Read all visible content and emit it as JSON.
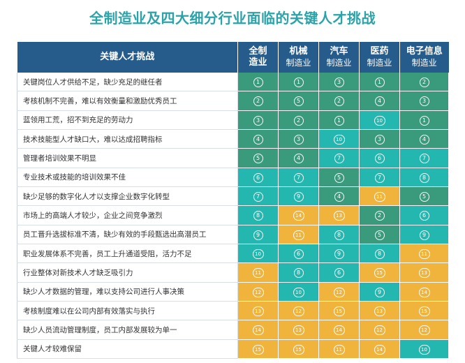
{
  "title": "全制造业及四大细分行业面临的关键人才挑战",
  "colors": {
    "header": "#255c8c",
    "rank_1_5": "#3a9b7c",
    "rank_6_10": "#23b7b0",
    "rank_11_15": "#f0b43c"
  },
  "chart_data": {
    "type": "table",
    "header_label": "关键人才挑战",
    "columns": [
      {
        "line1": "全制",
        "line2": "造业"
      },
      {
        "line1": "机械",
        "line2": "制造业"
      },
      {
        "line1": "汽车",
        "line2": "制造业"
      },
      {
        "line1": "医药",
        "line2": "制造业"
      },
      {
        "line1": "电子信息",
        "line2": "制造业"
      }
    ],
    "rows": [
      {
        "label": "关键岗位人才供给不足，缺少充足的继任者",
        "ranks": [
          1,
          1,
          3,
          1,
          2
        ]
      },
      {
        "label": "考核机制不完善，难以有效衡量和激励优秀员工",
        "ranks": [
          2,
          5,
          2,
          4,
          3
        ]
      },
      {
        "label": "蓝领用工荒，招不到充足的劳动力",
        "ranks": [
          3,
          2,
          1,
          10,
          1
        ]
      },
      {
        "label": "技术技能型人才缺口大，难以达成招聘指标",
        "ranks": [
          4,
          3,
          10,
          3,
          4
        ]
      },
      {
        "label": "管理者培训效果不明显",
        "ranks": [
          5,
          4,
          7,
          6,
          7
        ]
      },
      {
        "label": "专业技术或技能的培训效果不佳",
        "ranks": [
          6,
          7,
          5,
          7,
          8
        ]
      },
      {
        "label": "缺少足够的数字化人才以支撑企业数字化转型",
        "ranks": [
          7,
          9,
          4,
          11,
          5
        ]
      },
      {
        "label": "市场上的高端人才较少，企业之间竞争激烈",
        "ranks": [
          8,
          14,
          13,
          2,
          6
        ]
      },
      {
        "label": "员工晋升选拔标准不清，缺少有效的手段甄选出高潜员工",
        "ranks": [
          9,
          11,
          8,
          5,
          9
        ]
      },
      {
        "label": "职业发展体系不完善，员工上升通道受阻，活力不足",
        "ranks": [
          10,
          6,
          9,
          8,
          11
        ]
      },
      {
        "label": "行业整体对新技术人才缺乏吸引力",
        "ranks": [
          11,
          8,
          6,
          15,
          13
        ]
      },
      {
        "label": "缺少人才数据的管理，难以支持公司进行人事决策",
        "ranks": [
          12,
          10,
          12,
          9,
          14
        ]
      },
      {
        "label": "考核制度难以在公司内部有效落实与执行",
        "ranks": [
          13,
          12,
          15,
          13,
          15
        ]
      },
      {
        "label": "缺少人员流动管理制度，员工内部发展较为单一",
        "ranks": [
          14,
          13,
          14,
          12,
          12
        ]
      },
      {
        "label": "关键人才较难保留",
        "ranks": [
          15,
          15,
          11,
          14,
          10
        ]
      }
    ]
  }
}
